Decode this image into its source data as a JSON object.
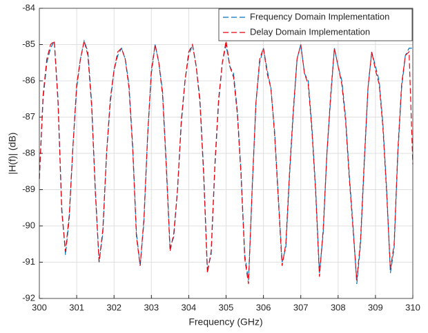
{
  "chart_data": {
    "type": "line",
    "xlabel": "Frequency (GHz)",
    "ylabel": "|H(f)| (dB)",
    "x": [
      300.0,
      300.1,
      300.2,
      300.3,
      300.4,
      300.5,
      300.6,
      300.7,
      300.8,
      300.9,
      301.0,
      301.1,
      301.2,
      301.3,
      301.4,
      301.5,
      301.6,
      301.7,
      301.8,
      301.9,
      302.0,
      302.1,
      302.2,
      302.3,
      302.4,
      302.5,
      302.6,
      302.7,
      302.8,
      302.9,
      303.0,
      303.1,
      303.2,
      303.3,
      303.4,
      303.5,
      303.6,
      303.7,
      303.8,
      303.9,
      304.0,
      304.1,
      304.2,
      304.3,
      304.4,
      304.5,
      304.6,
      304.7,
      304.8,
      304.9,
      305.0,
      305.1,
      305.2,
      305.3,
      305.4,
      305.5,
      305.6,
      305.7,
      305.8,
      305.9,
      306.0,
      306.1,
      306.2,
      306.3,
      306.4,
      306.5,
      306.6,
      306.7,
      306.8,
      306.9,
      307.0,
      307.1,
      307.2,
      307.3,
      307.4,
      307.5,
      307.6,
      307.7,
      307.8,
      307.9,
      308.0,
      308.1,
      308.2,
      308.3,
      308.4,
      308.5,
      308.6,
      308.7,
      308.8,
      308.9,
      309.0,
      309.1,
      309.2,
      309.3,
      309.4,
      309.5,
      309.6,
      309.7,
      309.8,
      309.9,
      310.0
    ],
    "series": [
      {
        "name": "Frequency Domain Implementation",
        "color": "#0072bd",
        "values": [
          -88.7,
          -86.5,
          -85.5,
          -85.1,
          -84.9,
          -86.5,
          -89.5,
          -90.8,
          -89.8,
          -87.8,
          -86.2,
          -85.4,
          -84.9,
          -85.2,
          -86.6,
          -89.0,
          -91.0,
          -90.2,
          -88.0,
          -86.6,
          -85.7,
          -85.3,
          -85.1,
          -85.4,
          -86.1,
          -87.8,
          -90.2,
          -91.1,
          -89.9,
          -87.5,
          -85.8,
          -85.0,
          -85.5,
          -86.3,
          -88.3,
          -90.6,
          -90.3,
          -89.0,
          -87.2,
          -86.0,
          -85.3,
          -85.0,
          -85.6,
          -86.5,
          -88.5,
          -91.2,
          -90.8,
          -88.4,
          -86.6,
          -85.5,
          -85.0,
          -85.6,
          -85.8,
          -86.8,
          -88.5,
          -90.8,
          -91.5,
          -89.0,
          -86.6,
          -85.5,
          -85.1,
          -85.7,
          -86.2,
          -87.4,
          -89.2,
          -91.0,
          -90.6,
          -88.6,
          -86.9,
          -85.4,
          -85.0,
          -85.8,
          -86.0,
          -87.3,
          -89.0,
          -91.3,
          -90.2,
          -88.0,
          -86.5,
          -85.1,
          -85.6,
          -86.0,
          -87.0,
          -88.6,
          -90.0,
          -91.6,
          -90.5,
          -88.3,
          -86.2,
          -85.2,
          -85.6,
          -86.0,
          -87.2,
          -89.0,
          -91.3,
          -90.6,
          -88.0,
          -86.2,
          -85.3,
          -85.1,
          -85.1
        ]
      },
      {
        "name": "Delay Domain Implementation",
        "color": "#e8000b",
        "values": [
          -88.7,
          -86.4,
          -85.4,
          -85.0,
          -84.9,
          -86.6,
          -89.6,
          -90.7,
          -89.7,
          -87.8,
          -86.1,
          -85.4,
          -84.9,
          -85.3,
          -86.7,
          -89.1,
          -91.0,
          -90.1,
          -88.0,
          -86.5,
          -85.7,
          -85.2,
          -85.1,
          -85.4,
          -86.2,
          -87.9,
          -90.3,
          -91.1,
          -89.8,
          -87.5,
          -85.7,
          -85.0,
          -85.5,
          -86.4,
          -88.4,
          -90.7,
          -90.2,
          -89.0,
          -87.1,
          -86.0,
          -85.2,
          -85.0,
          -85.6,
          -86.6,
          -88.6,
          -91.3,
          -90.7,
          -88.3,
          -86.5,
          -85.5,
          -84.9,
          -85.6,
          -85.9,
          -86.9,
          -88.6,
          -90.9,
          -91.6,
          -88.9,
          -86.6,
          -85.4,
          -85.1,
          -85.8,
          -86.2,
          -87.5,
          -89.3,
          -91.1,
          -90.5,
          -88.5,
          -86.8,
          -85.4,
          -85.0,
          -85.8,
          -86.1,
          -87.4,
          -89.1,
          -91.4,
          -90.1,
          -88.0,
          -86.4,
          -85.1,
          -85.6,
          -86.1,
          -87.1,
          -88.7,
          -90.1,
          -91.5,
          -90.4,
          -88.2,
          -86.2,
          -85.2,
          -85.7,
          -86.1,
          -87.3,
          -89.1,
          -91.2,
          -90.5,
          -87.9,
          -86.1,
          -85.3,
          -85.2,
          -88.3
        ]
      }
    ],
    "xlim": [
      300,
      310
    ],
    "xticks": [
      300,
      301,
      302,
      303,
      304,
      305,
      306,
      307,
      308,
      309,
      310
    ],
    "ylim": [
      -92,
      -84
    ],
    "yticks": [
      -92,
      -91,
      -90,
      -89,
      -88,
      -87,
      -86,
      -85,
      -84
    ],
    "grid": true,
    "legend": "upper right"
  }
}
